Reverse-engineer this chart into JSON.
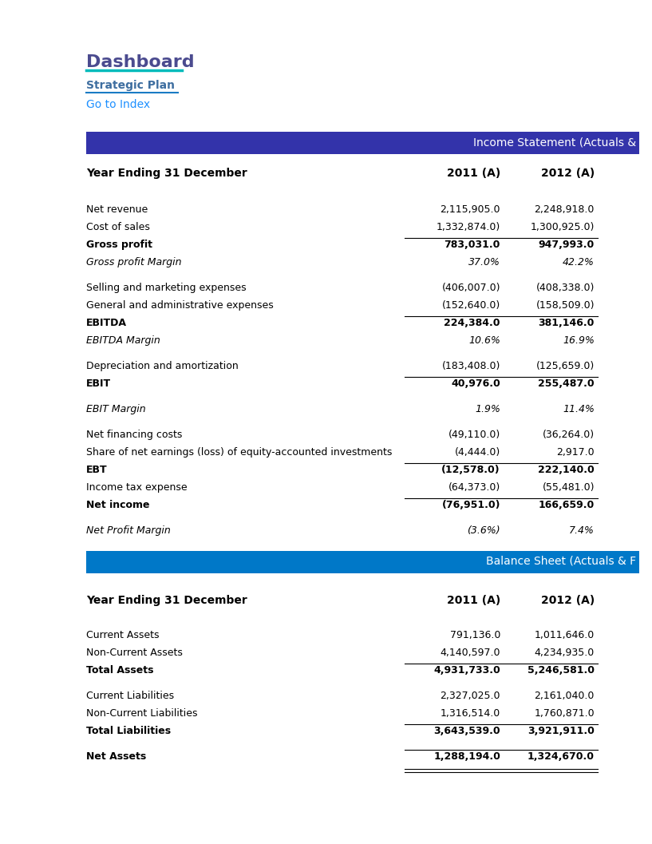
{
  "title": "Dashboard",
  "subtitle": "Strategic Plan",
  "link_text": "Go to Index",
  "title_color": "#4B4B8F",
  "subtitle_color": "#3E6EA0",
  "link_color": "#1E90FF",
  "accent_color": "#00BBBB",
  "header_bg_income": "#3333AA",
  "header_bg_balance": "#0078C8",
  "header_text_color": "#FFFFFF",
  "income_header": "Income Statement (Actuals &",
  "balance_header": "Balance Sheet (Actuals & F",
  "col_header": "Year Ending 31 December",
  "col_2011": "2011 (A)",
  "col_2012": "2012 (A)",
  "income_rows": [
    {
      "label": "Net revenue",
      "v2011": "2,115,905.0",
      "v2012": "2,248,918.0",
      "bold": false,
      "italic": false,
      "ul_above": false,
      "ul_below": false,
      "spacer": false
    },
    {
      "label": "Cost of sales",
      "v2011": "1,332,874.0)",
      "v2012": "1,300,925.0)",
      "bold": false,
      "italic": false,
      "ul_above": false,
      "ul_below": false,
      "spacer": false
    },
    {
      "label": "Gross profit",
      "v2011": "783,031.0",
      "v2012": "947,993.0",
      "bold": true,
      "italic": false,
      "ul_above": true,
      "ul_below": false,
      "spacer": false
    },
    {
      "label": "Gross profit Margin",
      "v2011": "37.0%",
      "v2012": "42.2%",
      "bold": false,
      "italic": true,
      "ul_above": false,
      "ul_below": false,
      "spacer": false
    },
    {
      "label": "",
      "v2011": "",
      "v2012": "",
      "bold": false,
      "italic": false,
      "ul_above": false,
      "ul_below": false,
      "spacer": true
    },
    {
      "label": "Selling and marketing expenses",
      "v2011": "(406,007.0)",
      "v2012": "(408,338.0)",
      "bold": false,
      "italic": false,
      "ul_above": false,
      "ul_below": false,
      "spacer": false
    },
    {
      "label": "General and administrative expenses",
      "v2011": "(152,640.0)",
      "v2012": "(158,509.0)",
      "bold": false,
      "italic": false,
      "ul_above": false,
      "ul_below": false,
      "spacer": false
    },
    {
      "label": "EBITDA",
      "v2011": "224,384.0",
      "v2012": "381,146.0",
      "bold": true,
      "italic": false,
      "ul_above": true,
      "ul_below": false,
      "spacer": false
    },
    {
      "label": "EBITDA Margin",
      "v2011": "10.6%",
      "v2012": "16.9%",
      "bold": false,
      "italic": true,
      "ul_above": false,
      "ul_below": false,
      "spacer": false
    },
    {
      "label": "",
      "v2011": "",
      "v2012": "",
      "bold": false,
      "italic": false,
      "ul_above": false,
      "ul_below": false,
      "spacer": true
    },
    {
      "label": "Depreciation and amortization",
      "v2011": "(183,408.0)",
      "v2012": "(125,659.0)",
      "bold": false,
      "italic": false,
      "ul_above": false,
      "ul_below": false,
      "spacer": false
    },
    {
      "label": "EBIT",
      "v2011": "40,976.0",
      "v2012": "255,487.0",
      "bold": true,
      "italic": false,
      "ul_above": true,
      "ul_below": false,
      "spacer": false
    },
    {
      "label": "",
      "v2011": "",
      "v2012": "",
      "bold": false,
      "italic": false,
      "ul_above": false,
      "ul_below": false,
      "spacer": true
    },
    {
      "label": "EBIT Margin",
      "v2011": "1.9%",
      "v2012": "11.4%",
      "bold": false,
      "italic": true,
      "ul_above": false,
      "ul_below": false,
      "spacer": false
    },
    {
      "label": "",
      "v2011": "",
      "v2012": "",
      "bold": false,
      "italic": false,
      "ul_above": false,
      "ul_below": false,
      "spacer": true
    },
    {
      "label": "Net financing costs",
      "v2011": "(49,110.0)",
      "v2012": "(36,264.0)",
      "bold": false,
      "italic": false,
      "ul_above": false,
      "ul_below": false,
      "spacer": false
    },
    {
      "label": "Share of net earnings (loss) of equity-accounted investments",
      "v2011": "(4,444.0)",
      "v2012": "2,917.0",
      "bold": false,
      "italic": false,
      "ul_above": false,
      "ul_below": false,
      "spacer": false
    },
    {
      "label": "EBT",
      "v2011": "(12,578.0)",
      "v2012": "222,140.0",
      "bold": true,
      "italic": false,
      "ul_above": true,
      "ul_below": false,
      "spacer": false
    },
    {
      "label": "Income tax expense",
      "v2011": "(64,373.0)",
      "v2012": "(55,481.0)",
      "bold": false,
      "italic": false,
      "ul_above": false,
      "ul_below": false,
      "spacer": false
    },
    {
      "label": "Net income",
      "v2011": "(76,951.0)",
      "v2012": "166,659.0",
      "bold": true,
      "italic": false,
      "ul_above": true,
      "ul_below": false,
      "spacer": false
    },
    {
      "label": "",
      "v2011": "",
      "v2012": "",
      "bold": false,
      "italic": false,
      "ul_above": false,
      "ul_below": false,
      "spacer": true
    },
    {
      "label": "Net Profit Margin",
      "v2011": "(3.6%)",
      "v2012": "7.4%",
      "bold": false,
      "italic": true,
      "ul_above": false,
      "ul_below": false,
      "spacer": false
    }
  ],
  "balance_rows": [
    {
      "label": "Current Assets",
      "v2011": "791,136.0",
      "v2012": "1,011,646.0",
      "bold": false,
      "italic": false,
      "ul_above": false,
      "ul_below": false,
      "spacer": false
    },
    {
      "label": "Non-Current Assets",
      "v2011": "4,140,597.0",
      "v2012": "4,234,935.0",
      "bold": false,
      "italic": false,
      "ul_above": false,
      "ul_below": false,
      "spacer": false
    },
    {
      "label": "Total Assets",
      "v2011": "4,931,733.0",
      "v2012": "5,246,581.0",
      "bold": true,
      "italic": false,
      "ul_above": true,
      "ul_below": false,
      "spacer": false
    },
    {
      "label": "",
      "v2011": "",
      "v2012": "",
      "bold": false,
      "italic": false,
      "ul_above": false,
      "ul_below": false,
      "spacer": true
    },
    {
      "label": "Current Liabilities",
      "v2011": "2,327,025.0",
      "v2012": "2,161,040.0",
      "bold": false,
      "italic": false,
      "ul_above": false,
      "ul_below": false,
      "spacer": false
    },
    {
      "label": "Non-Current Liabilities",
      "v2011": "1,316,514.0",
      "v2012": "1,760,871.0",
      "bold": false,
      "italic": false,
      "ul_above": false,
      "ul_below": false,
      "spacer": false
    },
    {
      "label": "Total Liabilities",
      "v2011": "3,643,539.0",
      "v2012": "3,921,911.0",
      "bold": true,
      "italic": false,
      "ul_above": true,
      "ul_below": false,
      "spacer": false
    },
    {
      "label": "",
      "v2011": "",
      "v2012": "",
      "bold": false,
      "italic": false,
      "ul_above": false,
      "ul_below": false,
      "spacer": true
    },
    {
      "label": "Net Assets",
      "v2011": "1,288,194.0",
      "v2012": "1,324,670.0",
      "bold": true,
      "italic": false,
      "ul_above": true,
      "ul_below": true,
      "spacer": false
    }
  ],
  "fig_w": 8.17,
  "fig_h": 10.57,
  "dpi": 100
}
